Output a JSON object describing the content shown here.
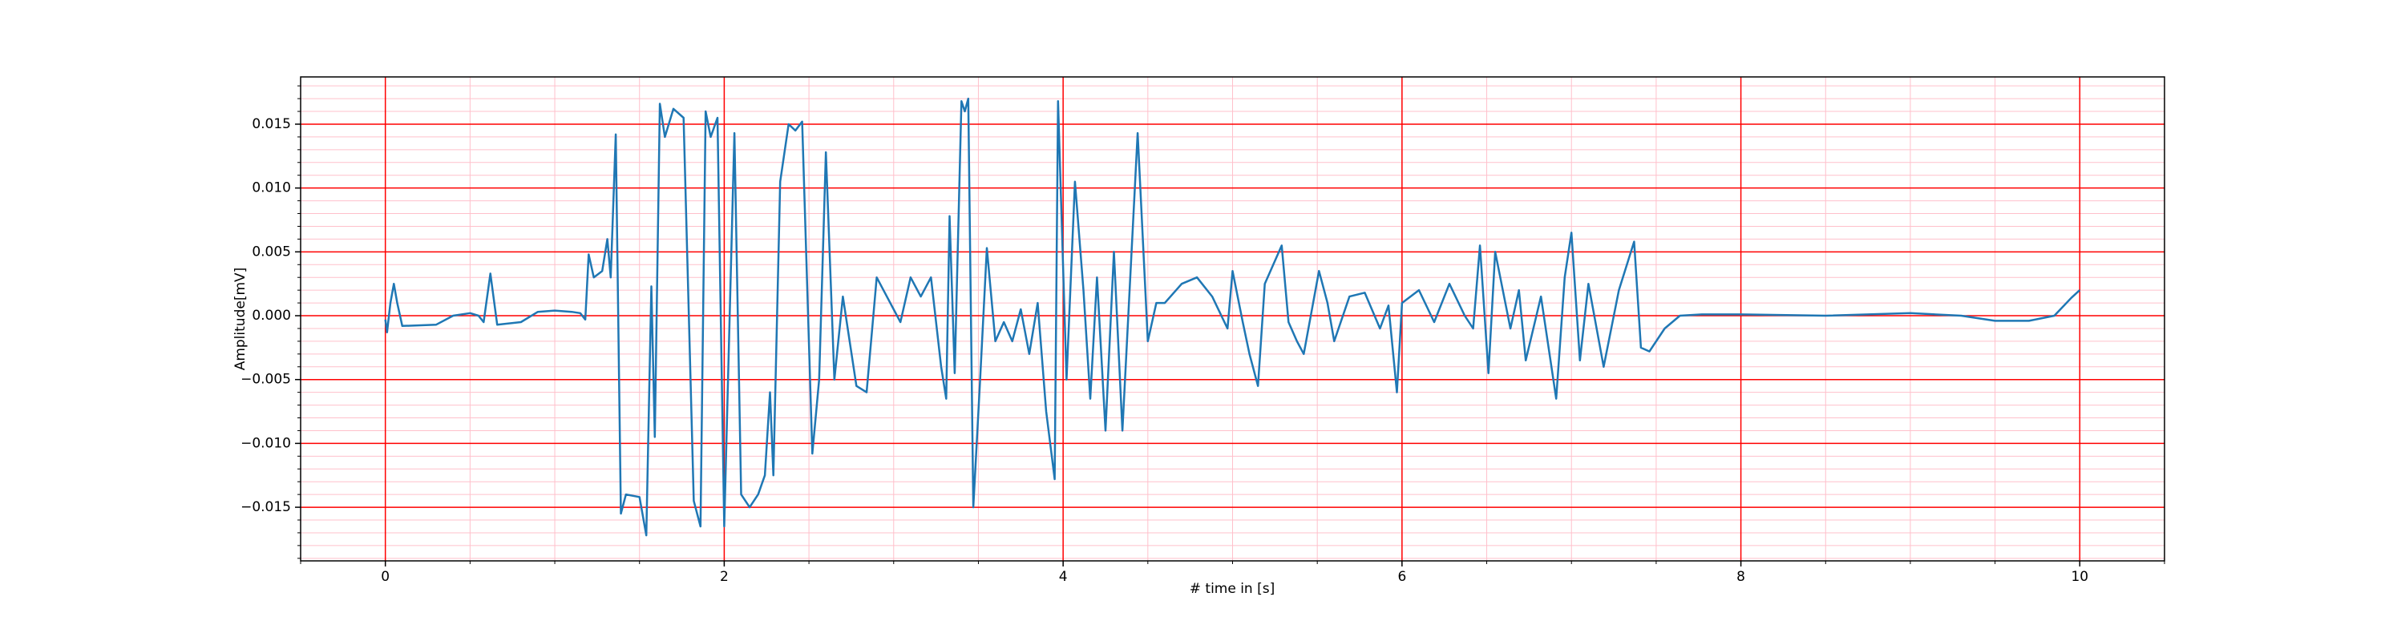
{
  "chart_data": {
    "type": "line",
    "xlabel": "# time in [s]",
    "ylabel": "Amplitude[mV]",
    "xlim": [
      -0.5,
      10.5
    ],
    "xticks": [
      0,
      2,
      4,
      6,
      8,
      10
    ],
    "ylim": [
      -0.0192,
      0.0187
    ],
    "yticks": [
      {
        "value": -0.015,
        "label": "−0.015"
      },
      {
        "value": -0.01,
        "label": "−0.010"
      },
      {
        "value": -0.005,
        "label": "−0.005"
      },
      {
        "value": 0,
        "label": "0.000"
      },
      {
        "value": 0.005,
        "label": "0.005"
      },
      {
        "value": 0.01,
        "label": "0.010"
      },
      {
        "value": 0.015,
        "label": "0.015"
      }
    ],
    "grid": true,
    "grid_color": "#ff0000",
    "minor_grid": true,
    "minor_grid_color": "#ffc0cb",
    "xminor": 0.5,
    "yminor": 0.001,
    "series": [
      {
        "color": "#1f77b4",
        "x": [
          0,
          0.01,
          0.03,
          0.05,
          0.07,
          0.1,
          0.3,
          0.4,
          0.5,
          0.55,
          0.58,
          0.62,
          0.66,
          0.8,
          0.9,
          1.0,
          1.1,
          1.15,
          1.18,
          1.2,
          1.23,
          1.28,
          1.31,
          1.33,
          1.36,
          1.39,
          1.42,
          1.5,
          1.54,
          1.57,
          1.59,
          1.62,
          1.65,
          1.7,
          1.76,
          1.82,
          1.86,
          1.89,
          1.92,
          1.96,
          2.0,
          2.06,
          2.1,
          2.15,
          2.2,
          2.24,
          2.27,
          2.29,
          2.33,
          2.38,
          2.42,
          2.46,
          2.52,
          2.56,
          2.6,
          2.65,
          2.7,
          2.78,
          2.84,
          2.9,
          2.98,
          3.04,
          3.1,
          3.16,
          3.22,
          3.28,
          3.31,
          3.33,
          3.36,
          3.4,
          3.42,
          3.44,
          3.47,
          3.51,
          3.55,
          3.6,
          3.65,
          3.7,
          3.75,
          3.8,
          3.85,
          3.9,
          3.95,
          3.97,
          4.02,
          4.07,
          4.12,
          4.16,
          4.2,
          4.25,
          4.3,
          4.35,
          4.44,
          4.5,
          4.55,
          4.6,
          4.7,
          4.79,
          4.88,
          4.97,
          5.0,
          5.06,
          5.1,
          5.15,
          5.19,
          5.29,
          5.33,
          5.38,
          5.42,
          5.51,
          5.56,
          5.6,
          5.69,
          5.78,
          5.87,
          5.92,
          5.97,
          6.0,
          6.1,
          6.19,
          6.28,
          6.37,
          6.42,
          6.46,
          6.51,
          6.55,
          6.64,
          6.69,
          6.73,
          6.82,
          6.91,
          6.96,
          7.0,
          7.05,
          7.1,
          7.19,
          7.28,
          7.37,
          7.41,
          7.46,
          7.55,
          7.64,
          7.77,
          8.0,
          8.5,
          9.0,
          9.3,
          9.5,
          9.7,
          9.85,
          9.95,
          10.0
        ],
        "values": [
          -0.0003,
          -0.0013,
          0.001,
          0.0025,
          0.001,
          -0.0008,
          -0.0007,
          0,
          0.0002,
          0,
          -0.0005,
          0.0033,
          -0.0007,
          -0.0005,
          0.0003,
          0.0004,
          0.0003,
          0.0002,
          -0.0003,
          0.0048,
          0.003,
          0.0035,
          0.006,
          0.003,
          0.0142,
          -0.0155,
          -0.014,
          -0.0142,
          -0.0172,
          0.0023,
          -0.0095,
          0.0166,
          0.014,
          0.0162,
          0.0155,
          -0.0145,
          -0.0165,
          0.016,
          0.014,
          0.0155,
          -0.0165,
          0.0143,
          -0.014,
          -0.015,
          -0.014,
          -0.0125,
          -0.006,
          -0.0125,
          0.0105,
          0.015,
          0.0145,
          0.0152,
          -0.0108,
          -0.005,
          0.0128,
          -0.005,
          0.0015,
          -0.0055,
          -0.006,
          0.003,
          0.001,
          -0.0005,
          0.003,
          0.0015,
          0.003,
          -0.004,
          -0.0065,
          0.0078,
          -0.0045,
          0.0168,
          0.016,
          0.017,
          -0.015,
          -0.005,
          0.0053,
          -0.002,
          -0.0005,
          -0.002,
          0.0005,
          -0.003,
          0.001,
          -0.0075,
          -0.0128,
          0.0168,
          -0.005,
          0.0105,
          0.002,
          -0.0065,
          0.003,
          -0.009,
          0.005,
          -0.009,
          0.0143,
          -0.002,
          0.001,
          0.001,
          0.0025,
          0.003,
          0.0015,
          -0.001,
          0.0035,
          -0.0005,
          -0.003,
          -0.0055,
          0.0025,
          0.0055,
          -0.0005,
          -0.002,
          -0.003,
          0.0035,
          0.001,
          -0.002,
          0.0015,
          0.0018,
          -0.001,
          0.0008,
          -0.006,
          0.001,
          0.002,
          -0.0005,
          0.0025,
          0,
          -0.001,
          0.0055,
          -0.0045,
          0.005,
          -0.001,
          0.002,
          -0.0035,
          0.0015,
          -0.0065,
          0.003,
          0.0065,
          -0.0035,
          0.0025,
          -0.004,
          0.002,
          0.0058,
          -0.0025,
          -0.0028,
          -0.001,
          0,
          0.0001,
          0.0001,
          0,
          0.0002,
          0,
          -0.0004,
          -0.0004,
          0,
          0.0014,
          0.002
        ]
      }
    ]
  }
}
